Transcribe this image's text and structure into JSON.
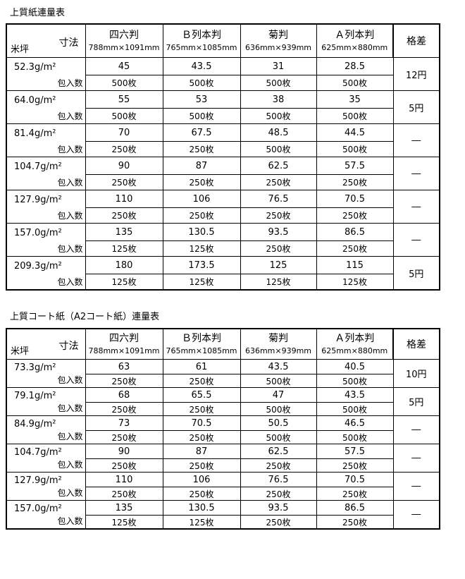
{
  "page": {
    "background": "#ffffff",
    "text_color": "#000000",
    "border_color": "#000000"
  },
  "tables": [
    {
      "title": "上質紙連量表",
      "header": {
        "corner_top": "寸法",
        "corner_bottom": "米坪",
        "count_label": "包入数",
        "kakusa_label": "格差",
        "columns": [
          {
            "name": "四六判",
            "size": "788mm×1091mm"
          },
          {
            "name": "Ｂ列本判",
            "size": "765mm×1085mm"
          },
          {
            "name": "菊判",
            "size": "636mm×939mm"
          },
          {
            "name": "Ａ列本判",
            "size": "625mm×880mm"
          }
        ]
      },
      "rows": [
        {
          "weight": "52.3g/m²",
          "values": [
            "45",
            "43.5",
            "31",
            "28.5"
          ],
          "counts": [
            "500枚",
            "500枚",
            "500枚",
            "500枚"
          ],
          "kakusa": "12円"
        },
        {
          "weight": "64.0g/m²",
          "values": [
            "55",
            "53",
            "38",
            "35"
          ],
          "counts": [
            "500枚",
            "500枚",
            "500枚",
            "500枚"
          ],
          "kakusa": "5円"
        },
        {
          "weight": "81.4g/m²",
          "values": [
            "70",
            "67.5",
            "48.5",
            "44.5"
          ],
          "counts": [
            "250枚",
            "250枚",
            "500枚",
            "500枚"
          ],
          "kakusa": "―"
        },
        {
          "weight": "104.7g/m²",
          "values": [
            "90",
            "87",
            "62.5",
            "57.5"
          ],
          "counts": [
            "250枚",
            "250枚",
            "250枚",
            "250枚"
          ],
          "kakusa": "―"
        },
        {
          "weight": "127.9g/m²",
          "values": [
            "110",
            "106",
            "76.5",
            "70.5"
          ],
          "counts": [
            "250枚",
            "250枚",
            "250枚",
            "250枚"
          ],
          "kakusa": "―"
        },
        {
          "weight": "157.0g/m²",
          "values": [
            "135",
            "130.5",
            "93.5",
            "86.5"
          ],
          "counts": [
            "125枚",
            "125枚",
            "250枚",
            "250枚"
          ],
          "kakusa": "―"
        },
        {
          "weight": "209.3g/m²",
          "values": [
            "180",
            "173.5",
            "125",
            "115"
          ],
          "counts": [
            "125枚",
            "125枚",
            "125枚",
            "125枚"
          ],
          "kakusa": "5円"
        }
      ]
    },
    {
      "title": "上質コート紙（A2コート紙）連量表",
      "header": {
        "corner_top": "寸法",
        "corner_bottom": "米坪",
        "count_label": "包入数",
        "kakusa_label": "格差",
        "columns": [
          {
            "name": "四六判",
            "size": "788mm×1091mm"
          },
          {
            "name": "Ｂ列本判",
            "size": "765mm×1085mm"
          },
          {
            "name": "菊判",
            "size": "636mm×939mm"
          },
          {
            "name": "Ａ列本判",
            "size": "625mm×880mm"
          }
        ]
      },
      "rows": [
        {
          "weight": "73.3g/m²",
          "values": [
            "63",
            "61",
            "43.5",
            "40.5"
          ],
          "counts": [
            "250枚",
            "250枚",
            "500枚",
            "500枚"
          ],
          "kakusa": "10円"
        },
        {
          "weight": "79.1g/m²",
          "values": [
            "68",
            "65.5",
            "47",
            "43.5"
          ],
          "counts": [
            "250枚",
            "250枚",
            "500枚",
            "500枚"
          ],
          "kakusa": "5円"
        },
        {
          "weight": "84.9g/m²",
          "values": [
            "73",
            "70.5",
            "50.5",
            "46.5"
          ],
          "counts": [
            "250枚",
            "250枚",
            "500枚",
            "500枚"
          ],
          "kakusa": "―"
        },
        {
          "weight": "104.7g/m²",
          "values": [
            "90",
            "87",
            "62.5",
            "57.5"
          ],
          "counts": [
            "250枚",
            "250枚",
            "250枚",
            "250枚"
          ],
          "kakusa": "―"
        },
        {
          "weight": "127.9g/m²",
          "values": [
            "110",
            "106",
            "76.5",
            "70.5"
          ],
          "counts": [
            "250枚",
            "250枚",
            "250枚",
            "250枚"
          ],
          "kakusa": "―"
        },
        {
          "weight": "157.0g/m²",
          "values": [
            "135",
            "130.5",
            "93.5",
            "86.5"
          ],
          "counts": [
            "125枚",
            "125枚",
            "250枚",
            "250枚"
          ],
          "kakusa": "―"
        }
      ]
    }
  ]
}
